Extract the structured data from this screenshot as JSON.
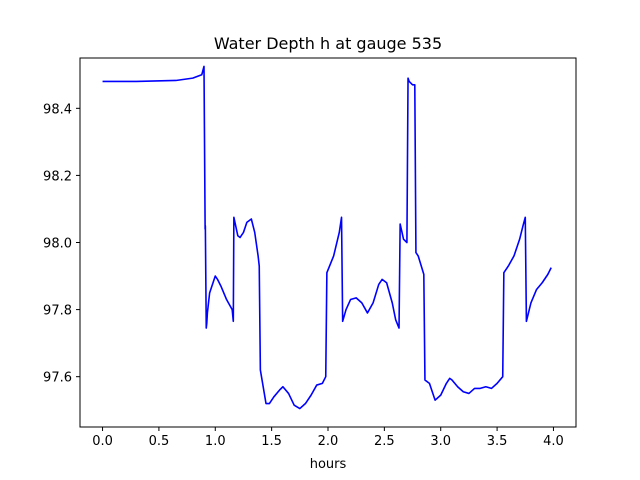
{
  "chart_data": {
    "type": "line",
    "title": "Water Depth h at gauge 535",
    "xlabel": "hours",
    "ylabel": "",
    "xlim": [
      -0.2,
      4.2
    ],
    "ylim": [
      97.45,
      98.55
    ],
    "x_ticks": [
      0.0,
      0.5,
      1.0,
      1.5,
      2.0,
      2.5,
      3.0,
      3.5,
      4.0
    ],
    "x_tick_labels": [
      "0.0",
      "0.5",
      "1.0",
      "1.5",
      "2.0",
      "2.5",
      "3.0",
      "3.5",
      "4.0"
    ],
    "y_ticks": [
      97.6,
      97.8,
      98.0,
      98.2,
      98.4
    ],
    "y_tick_labels": [
      "97.6",
      "97.8",
      "98.0",
      "98.2",
      "98.4"
    ],
    "grid": false,
    "colors": {
      "series": "#0000ff"
    },
    "series": [
      {
        "x": [
          0.0,
          0.3,
          0.65,
          0.8,
          0.88,
          0.9,
          0.91,
          0.912,
          0.92,
          0.925,
          0.93,
          0.95,
          0.98,
          1.0,
          1.02,
          1.05,
          1.1,
          1.15,
          1.16,
          1.165,
          1.2,
          1.22,
          1.25,
          1.28,
          1.32,
          1.35,
          1.38,
          1.39,
          1.4,
          1.45,
          1.48,
          1.52,
          1.57,
          1.6,
          1.65,
          1.7,
          1.75,
          1.8,
          1.85,
          1.9,
          1.95,
          1.98,
          1.99,
          2.05,
          2.1,
          2.12,
          2.13,
          2.16,
          2.2,
          2.25,
          2.3,
          2.35,
          2.4,
          2.45,
          2.48,
          2.52,
          2.57,
          2.6,
          2.63,
          2.64,
          2.67,
          2.7,
          2.71,
          2.72,
          2.75,
          2.77,
          2.78,
          2.8,
          2.85,
          2.86,
          2.9,
          2.95,
          3.0,
          3.05,
          3.08,
          3.1,
          3.15,
          3.2,
          3.25,
          3.3,
          3.35,
          3.4,
          3.45,
          3.5,
          3.55,
          3.56,
          3.6,
          3.65,
          3.7,
          3.73,
          3.75,
          3.76,
          3.8,
          3.85,
          3.9,
          3.95,
          3.98
        ],
        "y": [
          98.48,
          98.48,
          98.483,
          98.49,
          98.5,
          98.525,
          98.04,
          98.05,
          97.745,
          97.76,
          97.79,
          97.85,
          97.88,
          97.9,
          97.89,
          97.87,
          97.83,
          97.8,
          97.765,
          98.075,
          98.02,
          98.015,
          98.03,
          98.06,
          98.07,
          98.03,
          97.96,
          97.93,
          97.62,
          97.52,
          97.52,
          97.54,
          97.56,
          97.57,
          97.55,
          97.515,
          97.505,
          97.52,
          97.545,
          97.575,
          97.58,
          97.6,
          97.91,
          97.96,
          98.03,
          98.075,
          97.765,
          97.8,
          97.83,
          97.835,
          97.82,
          97.79,
          97.82,
          97.875,
          97.89,
          97.88,
          97.82,
          97.77,
          97.745,
          98.055,
          98.01,
          98.0,
          98.49,
          98.48,
          98.47,
          98.47,
          97.97,
          97.96,
          97.905,
          97.59,
          97.58,
          97.53,
          97.545,
          97.58,
          97.595,
          97.59,
          97.57,
          97.555,
          97.55,
          97.565,
          97.565,
          97.57,
          97.565,
          97.58,
          97.6,
          97.91,
          97.93,
          97.96,
          98.01,
          98.05,
          98.075,
          97.765,
          97.82,
          97.86,
          97.88,
          97.905,
          97.925
        ]
      }
    ]
  }
}
